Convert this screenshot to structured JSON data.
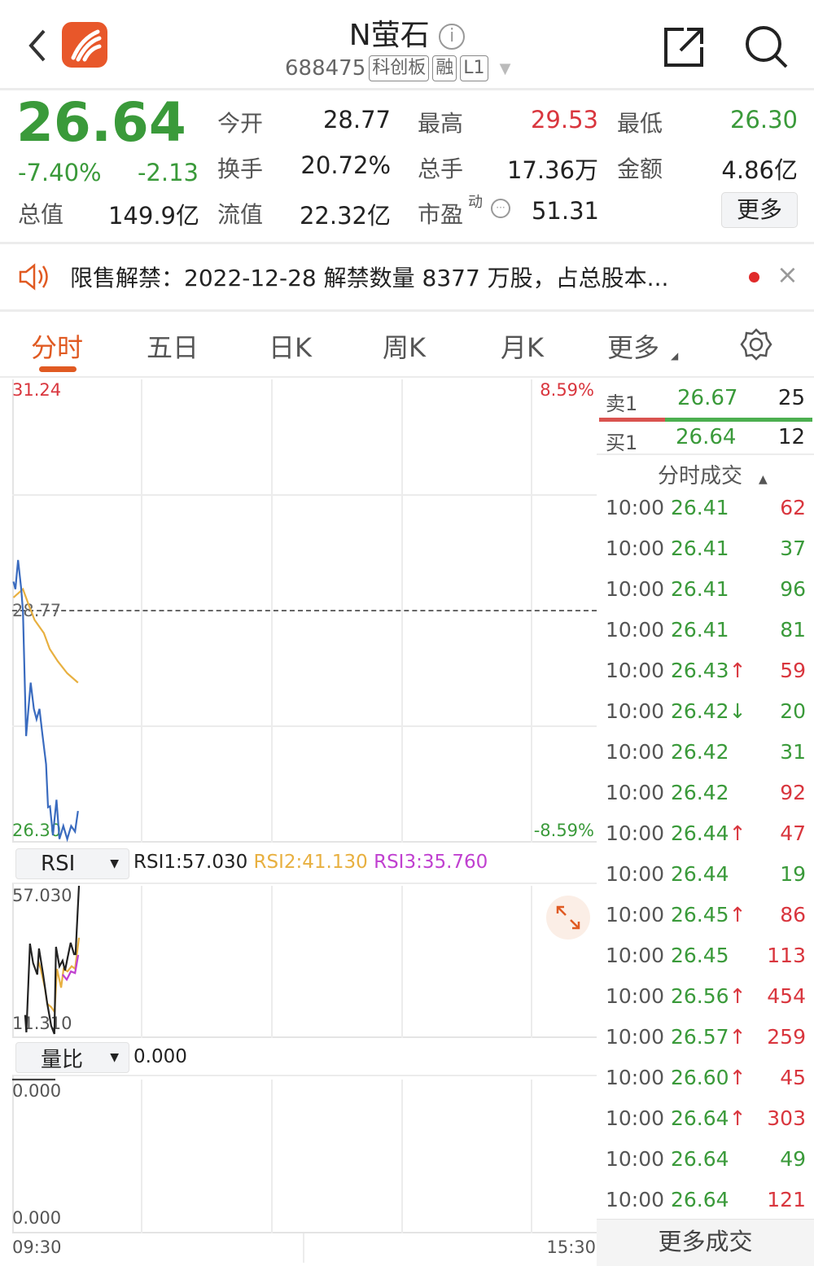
{
  "header": {
    "stock_name": "N萤石",
    "code": "688475",
    "tags": [
      "科创板",
      "融",
      "L1"
    ],
    "back_icon": "chevron-left-icon",
    "share_icon": "share-icon",
    "search_icon": "search-icon",
    "info_icon": "info-icon"
  },
  "quote": {
    "price": "26.64",
    "change_pct": "-7.40%",
    "change": "-2.13",
    "fields": [
      {
        "label": "今开",
        "value": "28.77",
        "color": "#222222"
      },
      {
        "label": "最高",
        "value": "29.53",
        "color": "#d9363e"
      },
      {
        "label": "最低",
        "value": "26.30",
        "color": "#3a9a3a"
      },
      {
        "label": "换手",
        "value": "20.72%",
        "color": "#222222"
      },
      {
        "label": "总手",
        "value": "17.36万",
        "color": "#222222"
      },
      {
        "label": "金额",
        "value": "4.86亿",
        "color": "#222222"
      },
      {
        "label": "总值",
        "value": "149.9亿",
        "color": "#222222"
      },
      {
        "label": "流值",
        "value": "22.32亿",
        "color": "#222222"
      },
      {
        "label": "市盈",
        "value": "51.31",
        "color": "#222222",
        "superscript": "动"
      }
    ],
    "more_label": "更多"
  },
  "notice": {
    "text": "限售解禁：2022-12-28 解禁数量 8377 万股，占总股本...",
    "icon": "speaker-icon",
    "close": "×"
  },
  "tabs": [
    {
      "label": "分时",
      "active": true
    },
    {
      "label": "五日"
    },
    {
      "label": "日K"
    },
    {
      "label": "周K"
    },
    {
      "label": "月K"
    },
    {
      "label": "更多"
    }
  ],
  "colors": {
    "up": "#d9363e",
    "down": "#3a9a3a",
    "accent": "#e05a22",
    "price_line": "#3a6bbf",
    "avg_line": "#e8b040",
    "rsi1": "#222222",
    "rsi2": "#e8b040",
    "rsi3": "#c040d0"
  },
  "order_book": {
    "sell": {
      "label": "卖1",
      "price": "26.67",
      "volume": "25"
    },
    "buy": {
      "label": "买1",
      "price": "26.64",
      "volume": "12"
    },
    "buy_ratio": 0.31
  },
  "trades_header": "分时成交",
  "trades": [
    {
      "time": "10:00",
      "price": "26.41",
      "arrow": "",
      "vol": "62",
      "side": "up"
    },
    {
      "time": "10:00",
      "price": "26.41",
      "arrow": "",
      "vol": "37",
      "side": "down"
    },
    {
      "time": "10:00",
      "price": "26.41",
      "arrow": "",
      "vol": "96",
      "side": "down"
    },
    {
      "time": "10:00",
      "price": "26.41",
      "arrow": "",
      "vol": "81",
      "side": "down"
    },
    {
      "time": "10:00",
      "price": "26.43",
      "arrow": "↑",
      "vol": "59",
      "side": "up"
    },
    {
      "time": "10:00",
      "price": "26.42",
      "arrow": "↓",
      "vol": "20",
      "side": "down"
    },
    {
      "time": "10:00",
      "price": "26.42",
      "arrow": "",
      "vol": "31",
      "side": "down"
    },
    {
      "time": "10:00",
      "price": "26.42",
      "arrow": "",
      "vol": "92",
      "side": "up"
    },
    {
      "time": "10:00",
      "price": "26.44",
      "arrow": "↑",
      "vol": "47",
      "side": "up"
    },
    {
      "time": "10:00",
      "price": "26.44",
      "arrow": "",
      "vol": "19",
      "side": "down"
    },
    {
      "time": "10:00",
      "price": "26.45",
      "arrow": "↑",
      "vol": "86",
      "side": "up"
    },
    {
      "time": "10:00",
      "price": "26.45",
      "arrow": "",
      "vol": "113",
      "side": "up"
    },
    {
      "time": "10:00",
      "price": "26.56",
      "arrow": "↑",
      "vol": "454",
      "side": "up"
    },
    {
      "time": "10:00",
      "price": "26.57",
      "arrow": "↑",
      "vol": "259",
      "side": "up"
    },
    {
      "time": "10:00",
      "price": "26.60",
      "arrow": "↑",
      "vol": "45",
      "side": "up"
    },
    {
      "time": "10:00",
      "price": "26.64",
      "arrow": "↑",
      "vol": "303",
      "side": "up"
    },
    {
      "time": "10:00",
      "price": "26.64",
      "arrow": "",
      "vol": "49",
      "side": "down"
    },
    {
      "time": "10:00",
      "price": "26.64",
      "arrow": "",
      "vol": "121",
      "side": "up"
    }
  ],
  "more_trades": "更多成交",
  "chart_data": [
    {
      "type": "line",
      "ylim": [
        26.3,
        31.24
      ],
      "y_ticks": {
        "max": "31.24",
        "prev_close": "28.77",
        "min": "26.30",
        "max_pct": "8.59%",
        "min_pct": "-8.59%"
      },
      "x_ticks": [
        "09:30",
        "15:30"
      ],
      "grid": true,
      "series": [
        {
          "key": "price",
          "points": [
            [
              "09:30:30",
              29.08
            ],
            [
              "09:31:18",
              29.0
            ],
            [
              "09:32:24",
              29.31
            ],
            [
              "09:33:42",
              29.0
            ],
            [
              "09:34:24",
              28.76
            ],
            [
              "09:35:42",
              27.43
            ],
            [
              "09:37:36",
              28.0
            ],
            [
              "09:38:54",
              27.72
            ],
            [
              "09:40:00",
              27.61
            ],
            [
              "09:41:12",
              27.72
            ],
            [
              "09:42:18",
              27.47
            ],
            [
              "09:43:54",
              27.13
            ],
            [
              "09:44:42",
              26.67
            ],
            [
              "09:45:30",
              26.68
            ],
            [
              "09:46:42",
              26.37
            ],
            [
              "09:48:12",
              26.75
            ],
            [
              "09:49:24",
              26.33
            ],
            [
              "09:51:00",
              26.47
            ],
            [
              "09:52:36",
              26.33
            ],
            [
              "09:54:12",
              26.47
            ],
            [
              "09:55:48",
              26.41
            ],
            [
              "09:57:00",
              26.63
            ]
          ]
        },
        {
          "key": "average",
          "points": [
            [
              "09:30:30",
              28.91
            ],
            [
              "09:34:24",
              29.0
            ],
            [
              "09:36:48",
              28.83
            ],
            [
              "09:39:12",
              28.67
            ],
            [
              "09:43:00",
              28.53
            ],
            [
              "09:45:24",
              28.36
            ],
            [
              "09:48:42",
              28.23
            ],
            [
              "09:52:36",
              28.1
            ],
            [
              "09:57:00",
              28.0
            ]
          ]
        }
      ]
    },
    {
      "type": "line",
      "indicator": "RSI",
      "ylim": [
        11.31,
        57.03
      ],
      "y_ticks": {
        "max": "57.030",
        "min": "11.310"
      },
      "legend": [
        "RSI1:57.030",
        "RSI2:41.130",
        "RSI3:35.760"
      ],
      "series": [
        {
          "name": "RSI1",
          "points": [
            [
              "09:35:18",
              17.16
            ],
            [
              "09:35:48",
              11.81
            ],
            [
              "09:37:18",
              39.19
            ],
            [
              "09:38:36",
              33.16
            ],
            [
              "09:40:18",
              29.65
            ],
            [
              "09:41:00",
              37.69
            ],
            [
              "09:42:42",
              29.65
            ],
            [
              "09:44:24",
              20.6
            ],
            [
              "09:46:00",
              13.82
            ],
            [
              "09:47:18",
              11.31
            ],
            [
              "09:48:00",
              38.19
            ],
            [
              "09:49:24",
              32.16
            ],
            [
              "09:50:42",
              33.92
            ],
            [
              "09:51:42",
              30.9
            ],
            [
              "09:52:42",
              34.67
            ],
            [
              "09:54:00",
              39.44
            ],
            [
              "09:55:24",
              35.93
            ],
            [
              "09:56:00",
              35.93
            ],
            [
              "09:57:24",
              57.03
            ]
          ]
        },
        {
          "name": "RSI2",
          "points": [
            [
              "09:40:36",
              33.92
            ],
            [
              "09:41:42",
              31.4
            ],
            [
              "09:43:24",
              25.6
            ],
            [
              "09:44:24",
              20.6
            ],
            [
              "09:46:00",
              19.6
            ],
            [
              "09:47:24",
              18.1
            ],
            [
              "09:48:24",
              31.4
            ],
            [
              "09:50:06",
              25.6
            ],
            [
              "09:51:06",
              31.4
            ],
            [
              "09:52:42",
              30.6
            ],
            [
              "09:54:24",
              32.2
            ],
            [
              "09:55:48",
              31.4
            ],
            [
              "09:57:24",
              41.0
            ]
          ]
        },
        {
          "name": "RSI3",
          "points": [
            [
              "09:50:42",
              29.65
            ],
            [
              "09:52:24",
              28.1
            ],
            [
              "09:54:06",
              30.6
            ],
            [
              "09:55:48",
              30.1
            ],
            [
              "09:57:06",
              35.7
            ]
          ]
        }
      ]
    },
    {
      "type": "line",
      "indicator": "量比",
      "legend": [
        "0.000"
      ],
      "y_ticks": {
        "max": "0.000",
        "min": "0.000"
      },
      "series": [
        {
          "key": "volume_ratio",
          "points": [
            [
              "09:30:00",
              0
            ],
            [
              "09:47:42",
              0
            ]
          ]
        }
      ]
    }
  ]
}
